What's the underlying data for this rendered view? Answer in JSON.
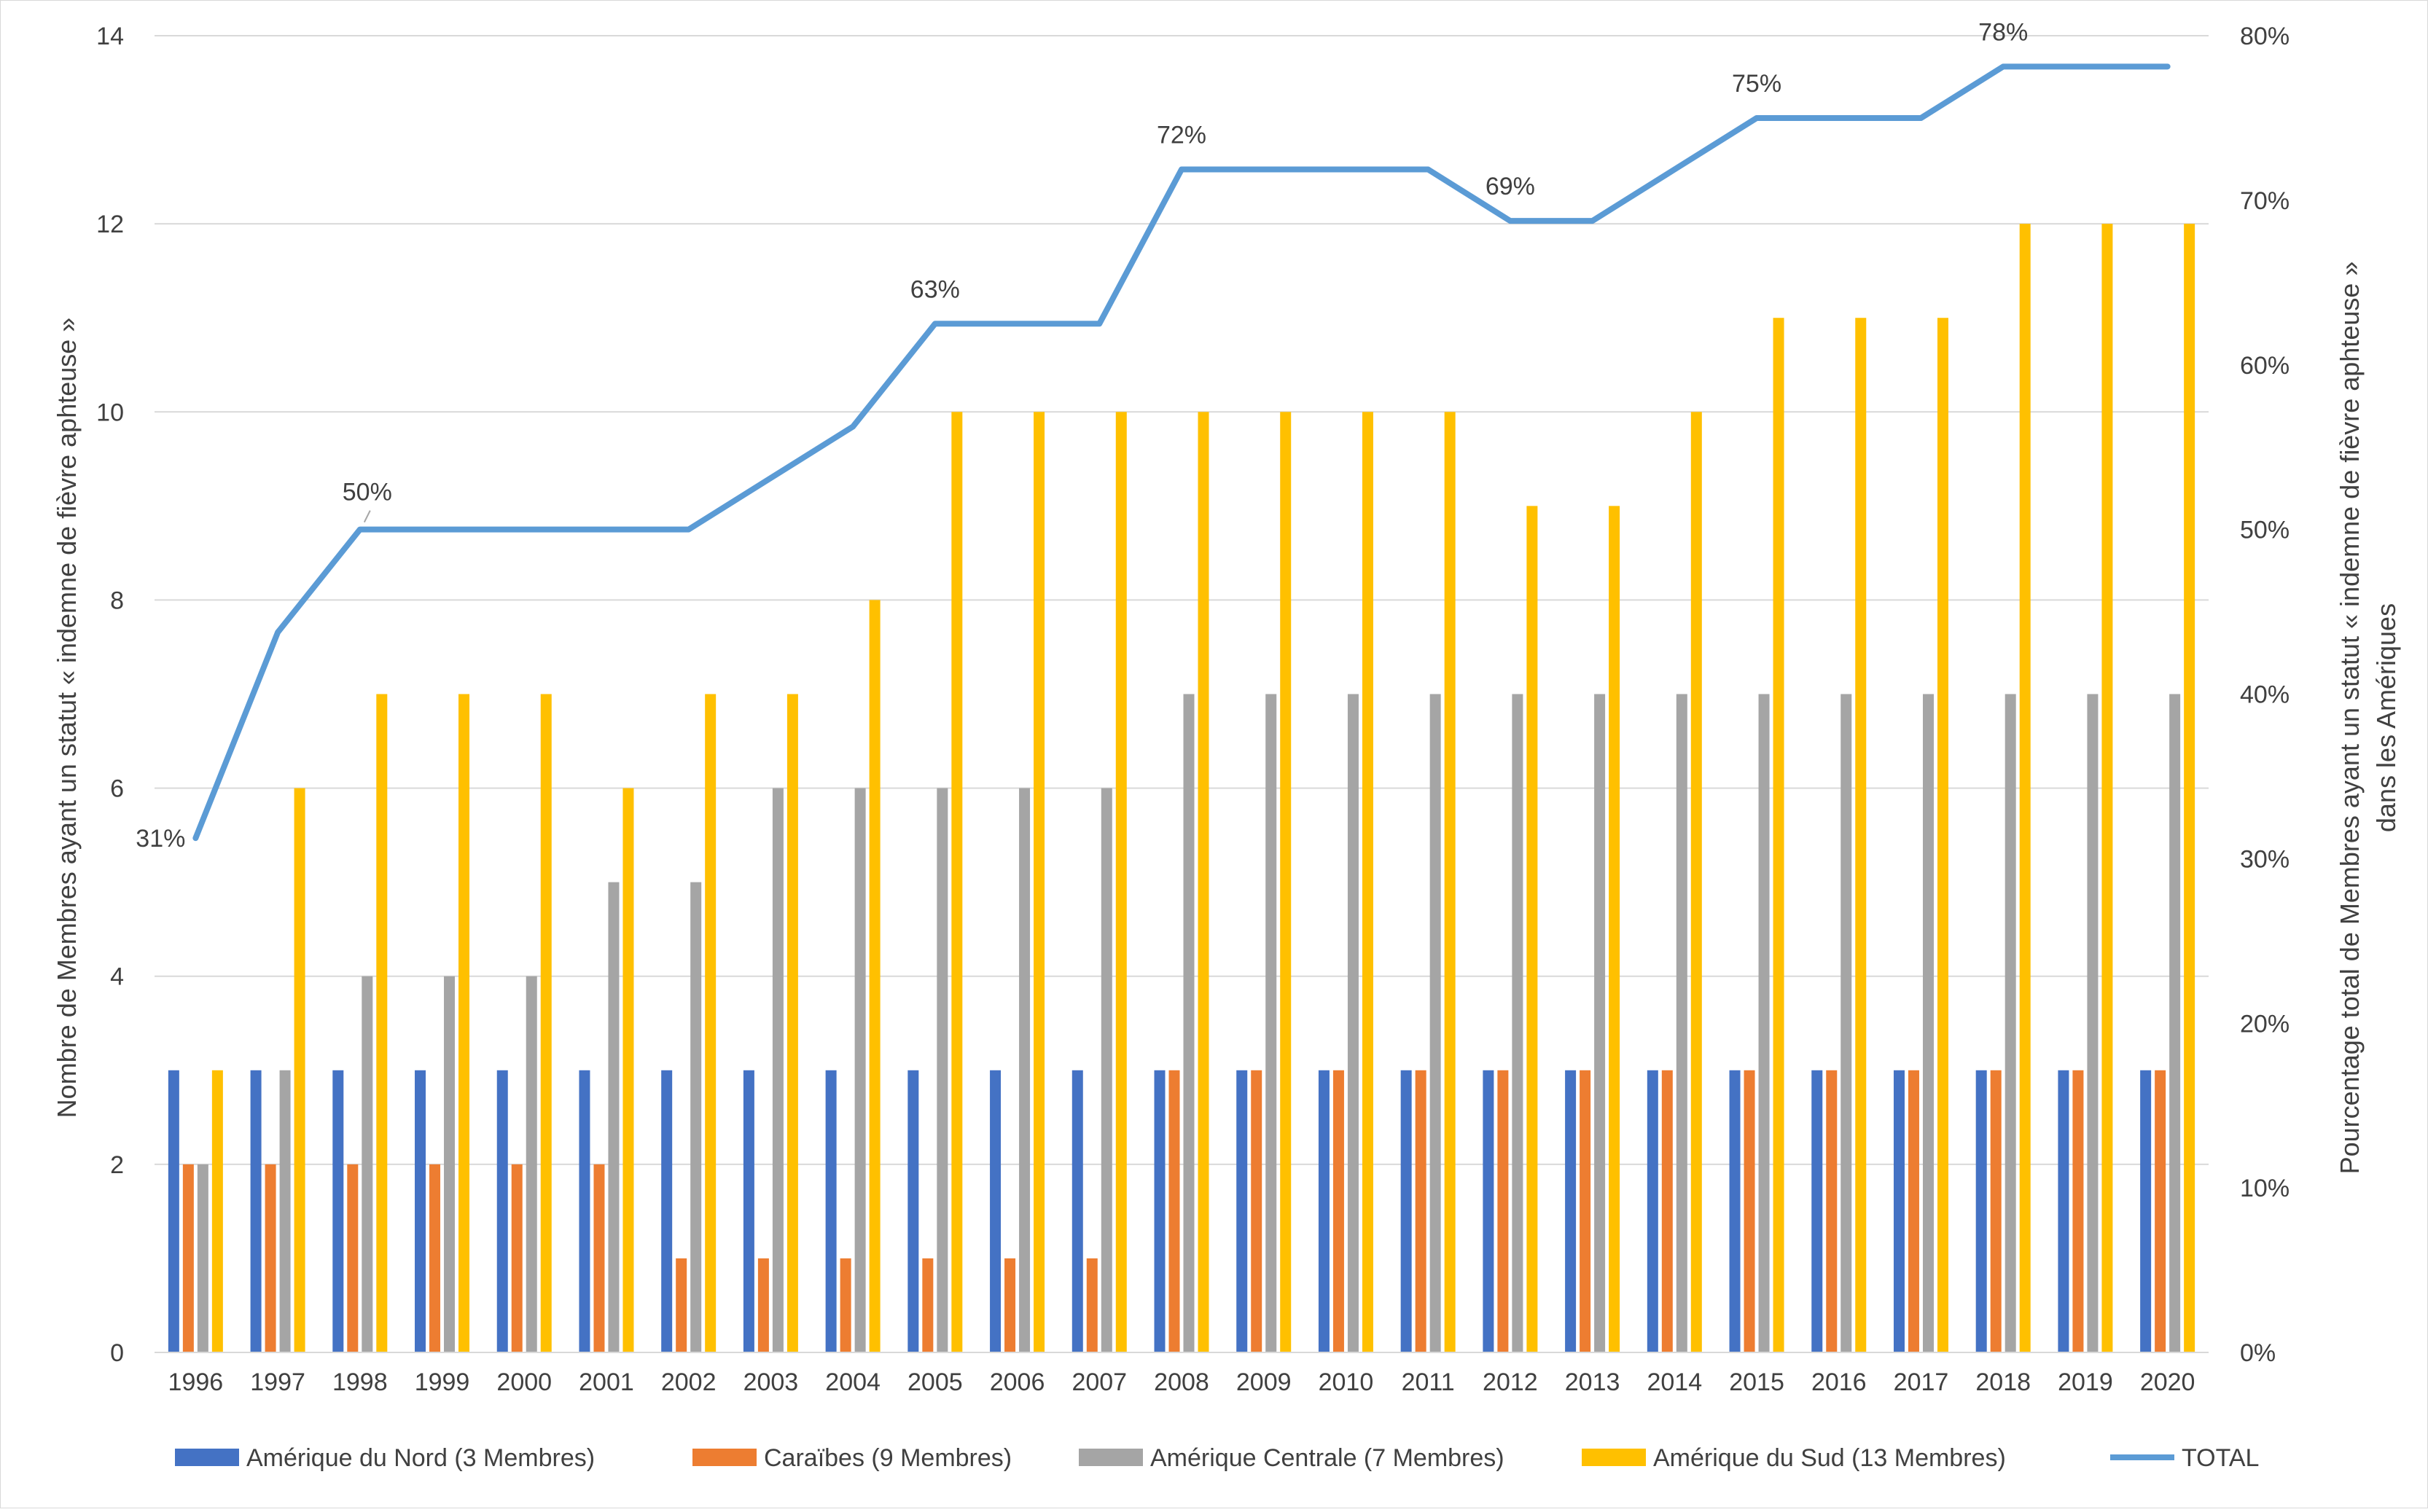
{
  "chart_data": {
    "type": "bar",
    "combo": "bar+line",
    "categories": [
      "1996",
      "1997",
      "1998",
      "1999",
      "2000",
      "2001",
      "2002",
      "2003",
      "2004",
      "2005",
      "2006",
      "2007",
      "2008",
      "2009",
      "2010",
      "2011",
      "2012",
      "2013",
      "2014",
      "2015",
      "2016",
      "2017",
      "2018",
      "2019",
      "2020"
    ],
    "series": [
      {
        "name": "Amérique du Nord (3 Membres)",
        "color": "#4472C4",
        "values": [
          3,
          3,
          3,
          3,
          3,
          3,
          3,
          3,
          3,
          3,
          3,
          3,
          3,
          3,
          3,
          3,
          3,
          3,
          3,
          3,
          3,
          3,
          3,
          3,
          3
        ]
      },
      {
        "name": "Caraïbes (9 Membres)",
        "color": "#ED7D31",
        "values": [
          2,
          2,
          2,
          2,
          2,
          2,
          1,
          1,
          1,
          1,
          1,
          1,
          3,
          3,
          3,
          3,
          3,
          3,
          3,
          3,
          3,
          3,
          3,
          3,
          3
        ]
      },
      {
        "name": "Amérique Centrale (7 Membres)",
        "color": "#A5A5A5",
        "values": [
          2,
          3,
          4,
          4,
          4,
          5,
          5,
          6,
          6,
          6,
          6,
          6,
          7,
          7,
          7,
          7,
          7,
          7,
          7,
          7,
          7,
          7,
          7,
          7,
          7
        ]
      },
      {
        "name": "Amérique du Sud (13 Membres)",
        "color": "#FFC000",
        "values": [
          3,
          6,
          7,
          7,
          7,
          6,
          7,
          7,
          8,
          10,
          10,
          10,
          10,
          10,
          10,
          10,
          9,
          9,
          10,
          11,
          11,
          11,
          12,
          12,
          12
        ]
      }
    ],
    "line": {
      "name": "TOTAL",
      "color": "#5B9BD5",
      "axis": "right",
      "values": [
        31.25,
        43.75,
        50,
        50,
        50,
        50,
        50,
        53.125,
        56.25,
        62.5,
        62.5,
        62.5,
        71.875,
        71.875,
        71.875,
        71.875,
        68.75,
        68.75,
        71.875,
        75,
        75,
        75,
        78.125,
        78.125,
        78.125
      ],
      "data_labels": [
        {
          "category": "1996",
          "text": "31%"
        },
        {
          "category": "1998",
          "text": "50%"
        },
        {
          "category": "2005",
          "text": "63%"
        },
        {
          "category": "2008",
          "text": "72%"
        },
        {
          "category": "2012",
          "text": "69%"
        },
        {
          "category": "2015",
          "text": "75%"
        },
        {
          "category": "2018",
          "text": "78%"
        }
      ]
    },
    "ylabel": "Nombre de Membres ayant un statut « indemne de fièvre aphteuse »",
    "y2label_lines": [
      "Pourcentage total de Membres ayant un statut « indemne de fièvre aphteuse »",
      "dans les Amériques"
    ],
    "ylim": [
      0,
      14
    ],
    "yticks": [
      "0",
      "2",
      "4",
      "6",
      "8",
      "10",
      "12",
      "14"
    ],
    "y2lim": [
      0,
      80
    ],
    "y2ticks": [
      "0%",
      "10%",
      "20%",
      "30%",
      "40%",
      "50%",
      "60%",
      "70%",
      "80%"
    ],
    "grid": true,
    "legend": {
      "position": "bottom",
      "items": [
        "Amérique du Nord (3 Membres)",
        "Caraïbes (9 Membres)",
        "Amérique Centrale (7 Membres)",
        "Amérique du Sud (13 Membres)",
        "TOTAL"
      ]
    }
  }
}
